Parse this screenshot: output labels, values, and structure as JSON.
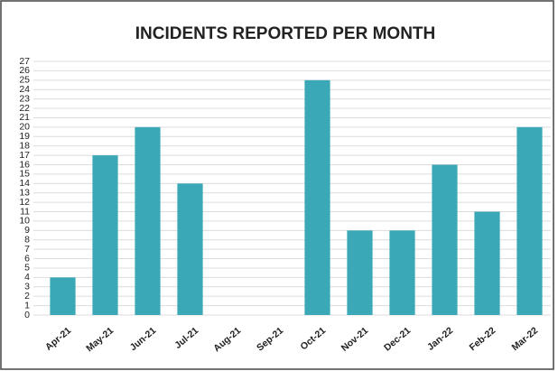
{
  "chart_data": {
    "type": "bar",
    "title": "INCIDENTS REPORTED PER MONTH",
    "categories": [
      "Apr-21",
      "May-21",
      "Jun-21",
      "Jul-21",
      "Aug-21",
      "Sep-21",
      "Oct-21",
      "Nov-21",
      "Dec-21",
      "Jan-22",
      "Feb-22",
      "Mar-22"
    ],
    "values": [
      4,
      17,
      20,
      14,
      0,
      0,
      25,
      9,
      9,
      16,
      11,
      20
    ],
    "color": "#3aa8b6",
    "ylim": [
      0,
      27
    ],
    "yticks": [
      0,
      1,
      2,
      3,
      4,
      5,
      6,
      7,
      8,
      9,
      10,
      11,
      12,
      13,
      14,
      15,
      16,
      17,
      18,
      19,
      20,
      21,
      22,
      23,
      24,
      25,
      26,
      27
    ],
    "grid": true
  }
}
